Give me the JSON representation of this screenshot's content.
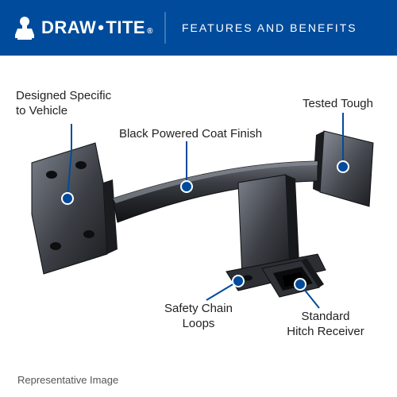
{
  "header": {
    "bg_color": "#004b9b",
    "brand_left": "DRAW",
    "brand_right": "TITE",
    "reg_mark": "®",
    "divider_color": "#3a77b4",
    "subtitle": "FEATURES AND BENEFITS",
    "logo_fill": "#ffffff"
  },
  "product": {
    "bar_color": "#2b2d31",
    "bar_highlight": "#4f5259",
    "bar_shadow": "#111215",
    "plate_color": "#3b3e44",
    "plate_light": "#6a6e76",
    "plate_dark": "#1f2125",
    "bolt_color": "#cfd3da"
  },
  "callouts": {
    "line_color": "#004b9b",
    "dot_fill": "#004b9b",
    "dot_stroke": "#ffffff",
    "items": {
      "designed": {
        "label": "Designed Specific\nto Vehicle"
      },
      "finish": {
        "label": "Black Powered Coat Finish"
      },
      "tough": {
        "label": "Tested Tough"
      },
      "loops": {
        "label": "Safety Chain\nLoops"
      },
      "receiver": {
        "label": "Standard\nHitch Receiver"
      }
    }
  },
  "footer": {
    "note": "Representative Image"
  }
}
